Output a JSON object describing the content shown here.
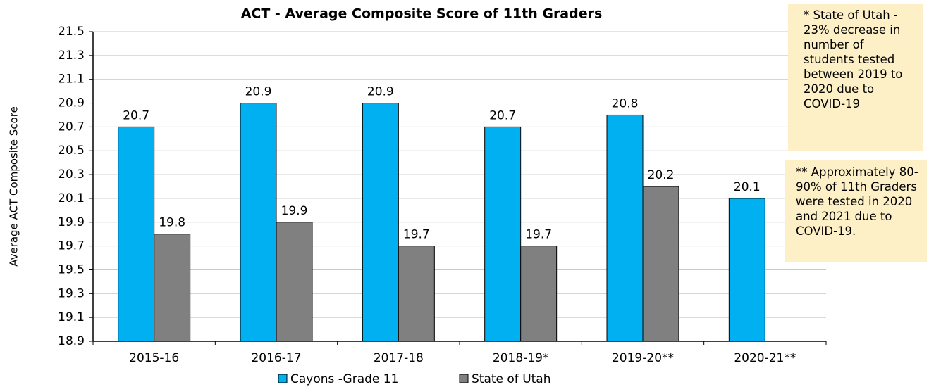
{
  "chart_data": {
    "type": "bar",
    "title": "ACT - Average Composite Score of 11th Graders",
    "y_label": "Average ACT Composite Score",
    "categories": [
      "2015-16",
      "2016-17",
      "2017-18",
      "2018-19*",
      "2019-20**",
      "2020-21**"
    ],
    "series": [
      {
        "name": "Cayons -Grade 11",
        "color": "#00b0f0",
        "values": [
          20.7,
          20.9,
          20.9,
          20.7,
          20.8,
          20.1
        ]
      },
      {
        "name": "State of Utah",
        "color": "#808080",
        "values": [
          19.8,
          19.9,
          19.7,
          19.7,
          20.2,
          null
        ]
      }
    ],
    "ylim": [
      18.9,
      21.5
    ],
    "yticks": [
      18.9,
      19.1,
      19.3,
      19.5,
      19.7,
      19.9,
      20.1,
      20.3,
      20.5,
      20.7,
      20.9,
      21.1,
      21.3,
      21.5
    ],
    "grid": true,
    "legend": "bottom",
    "annotations": [
      "* State of Utah - 23% decrease in number of students tested between 2019 to 2020 due to COVID-19",
      "** Approximately 80-90% of 11th Graders were tested in 2020 and 2021 due to COVID-19."
    ]
  }
}
